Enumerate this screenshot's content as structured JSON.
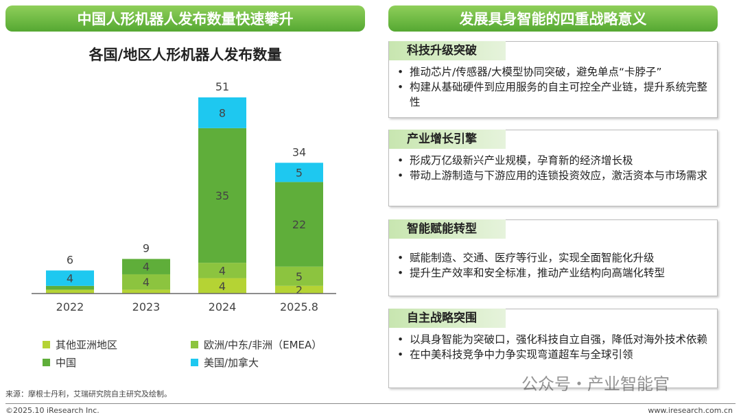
{
  "left_banner": "中国人形机器人发布数量快速攀升",
  "right_banner": "发展具身智能的四重战略意义",
  "chart_data": {
    "type": "bar",
    "stacked": true,
    "title": "各国/地区人形机器人发布数量",
    "categories": [
      "2022",
      "2023",
      "2024",
      "2025.8"
    ],
    "totals": [
      6,
      9,
      51,
      34
    ],
    "series": [
      {
        "name": "其他亚洲地区",
        "color": "#b5d334",
        "values": [
          1,
          1,
          4,
          2
        ],
        "labels": [
          "",
          "",
          "4",
          "2"
        ]
      },
      {
        "name": "欧洲/中东/非洲（EMEA）",
        "color": "#8cc43f",
        "values": [
          0,
          4,
          4,
          5
        ],
        "labels": [
          "",
          "4",
          "4",
          "5"
        ]
      },
      {
        "name": "中国",
        "color": "#5fae3a",
        "values": [
          1,
          4,
          35,
          22
        ],
        "labels": [
          "",
          "4",
          "35",
          "22"
        ]
      },
      {
        "name": "美国/加拿大",
        "color": "#1ec8f0",
        "values": [
          4,
          0,
          8,
          5
        ],
        "labels": [
          "4",
          "",
          "8",
          "5"
        ]
      }
    ],
    "ylim": [
      0,
      55
    ],
    "legend": "bottom"
  },
  "cards": [
    {
      "title": "科技升级突破",
      "items": [
        "推动芯片/传感器/大模型协同突破，避免单点“卡脖子”",
        "构建从基础硬件到应用服务的自主可控全产业链，提升系统完整性"
      ]
    },
    {
      "title": "产业增长引擎",
      "items": [
        "形成万亿级新兴产业规模，孕育新的经济增长极",
        "带动上游制造与下游应用的连锁投资效应，激活资本与市场需求"
      ]
    },
    {
      "title": "智能赋能转型",
      "items": [
        "赋能制造、交通、医疗等行业，实现全面智能化升级",
        "提升生产效率和安全标准，推动产业结构向高端化转型"
      ]
    },
    {
      "title": "自主战略突围",
      "items": [
        "以具身智能为突破口，强化科技自立自强，降低对海外技术依赖",
        "在中美科技竞争中力争实现弯道超车与全球引领"
      ]
    }
  ],
  "source": "来源：摩根士丹利，艾瑞研究院自主研究及绘制。",
  "copyright": "©2025.10 iResearch Inc.",
  "website": "www.iresearch.com.cn",
  "watermark": "公众号・产业智能官"
}
